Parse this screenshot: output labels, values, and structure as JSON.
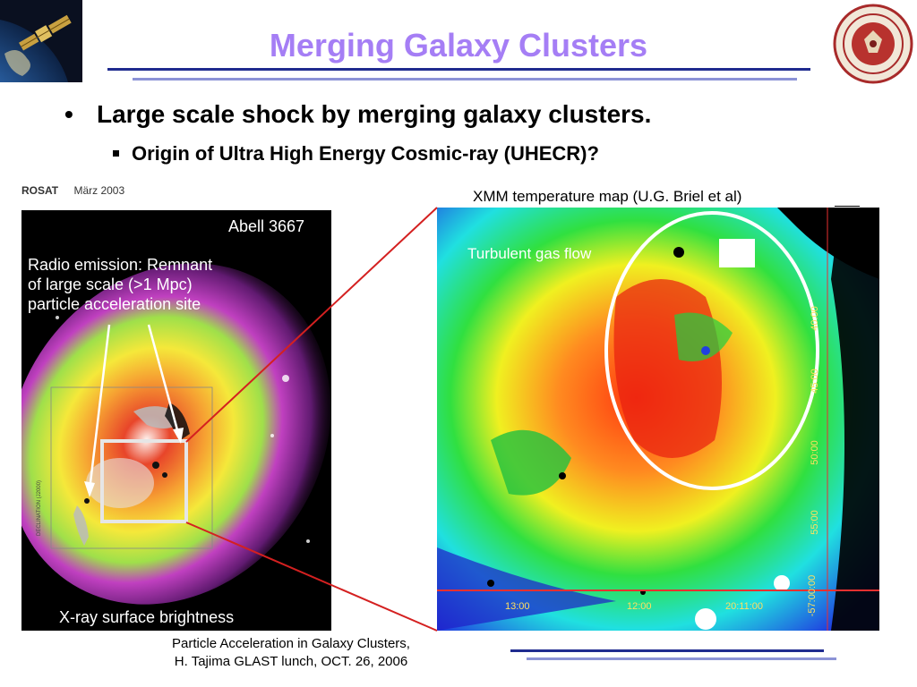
{
  "slide": {
    "title": "Merging Galaxy Clusters",
    "bullet_primary": "Large scale shock by merging galaxy clusters.",
    "bullet_secondary": "Origin of Ultra High Energy Cosmic-ray (UHECR)?",
    "bullet_marker": "•"
  },
  "left_image": {
    "header_left": "ROSAT",
    "header_right": "März 2003",
    "label_cluster": "Abell 3667",
    "radio_line1": "Radio emission: Remnant",
    "radio_line2": "of large scale (>1 Mpc)",
    "radio_line3": "particle acceleration site",
    "caption_bottom": "X-ray surface brightness",
    "axis_label": "DECLINATION (J2000)"
  },
  "right_image": {
    "caption_top": "XMM temperature map (U.G. Briel et al)",
    "label_flow": "Turbulent gas flow",
    "ticks_right": [
      "40:00",
      "45:00",
      "50:00",
      "55:00",
      "-57:00:00"
    ],
    "ticks_bottom": [
      "13:00",
      "12:00",
      "20:11:00"
    ]
  },
  "footer": {
    "line1": "Particle Acceleration in Galaxy Clusters,",
    "line2": "H. Tajima GLAST lunch, OCT. 26, 2006"
  },
  "colors": {
    "title": "#a57ef5",
    "rule_dark": "#1f2b8f",
    "rule_light": "#8c93d6",
    "zoom_lines": "#d42020"
  },
  "logos": {
    "left": "satellite-earth-logo",
    "right": "stanford-linear-accelerator-seal"
  }
}
